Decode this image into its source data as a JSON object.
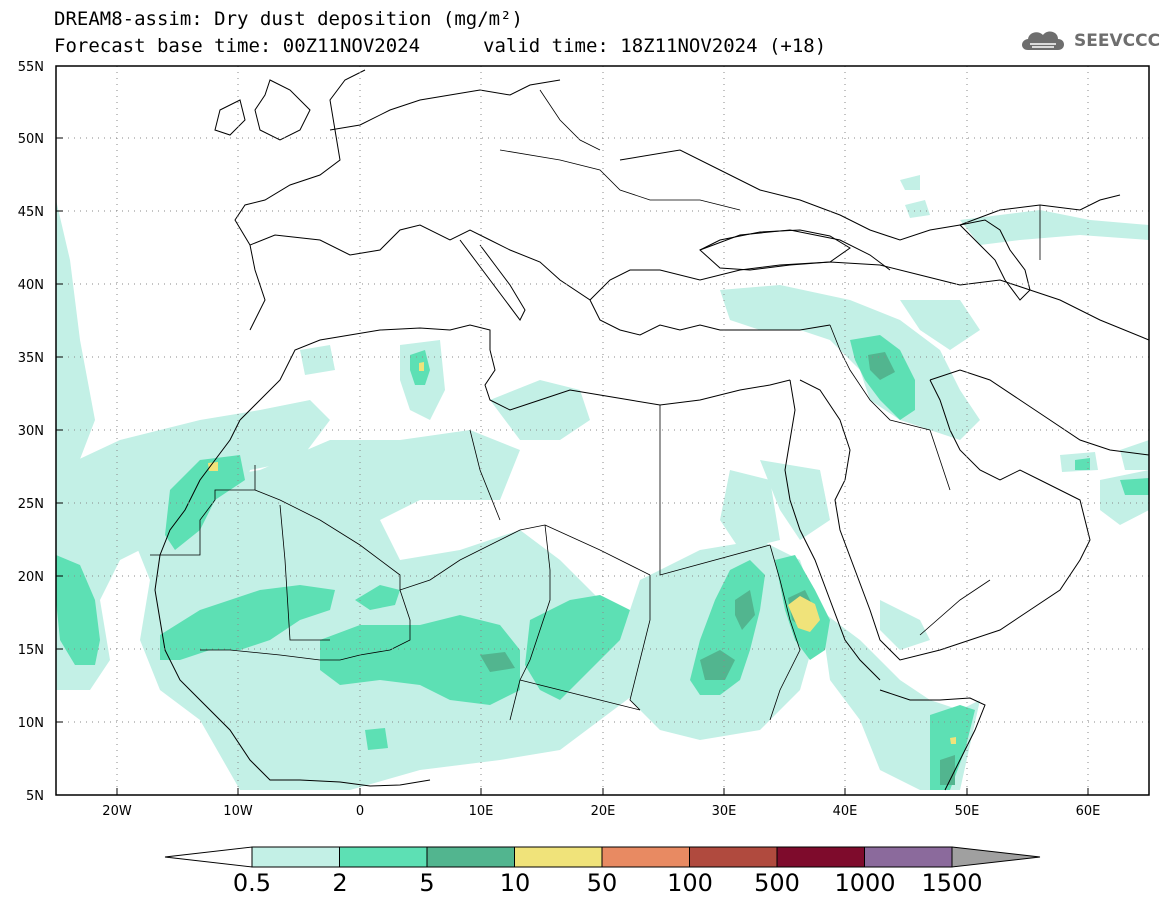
{
  "header": {
    "title": "DREAM8-assim: Dry dust deposition (mg/m²)",
    "base_time": "Forecast base time: 00Z11NOV2024",
    "valid_time": "valid time: 18Z11NOV2024 (+18)",
    "logo_text": "SEEVCCC",
    "logo_icon": "cloud-logo-icon"
  },
  "map": {
    "lon_range": [
      -25,
      65
    ],
    "lat_range": [
      5,
      55
    ],
    "lat_labels": [
      "55N",
      "50N",
      "45N",
      "40N",
      "35N",
      "30N",
      "25N",
      "20N",
      "15N",
      "10N",
      "5N"
    ],
    "lon_labels": [
      "20W",
      "10W",
      "0",
      "10E",
      "20E",
      "30E",
      "40E",
      "50E",
      "60E"
    ]
  },
  "colorbar": {
    "labels": [
      "0.5",
      "2",
      "5",
      "10",
      "50",
      "100",
      "500",
      "1000",
      "1500"
    ],
    "colors": [
      "#c3f0e6",
      "#5de0b4",
      "#52b58f",
      "#f0e37a",
      "#e88a62",
      "#b04a3e",
      "#7e0b2c",
      "#8b6a9c",
      "#a0a0a0"
    ],
    "low_end_color": "#ffffff",
    "high_end_color": "#a0a0a0"
  }
}
